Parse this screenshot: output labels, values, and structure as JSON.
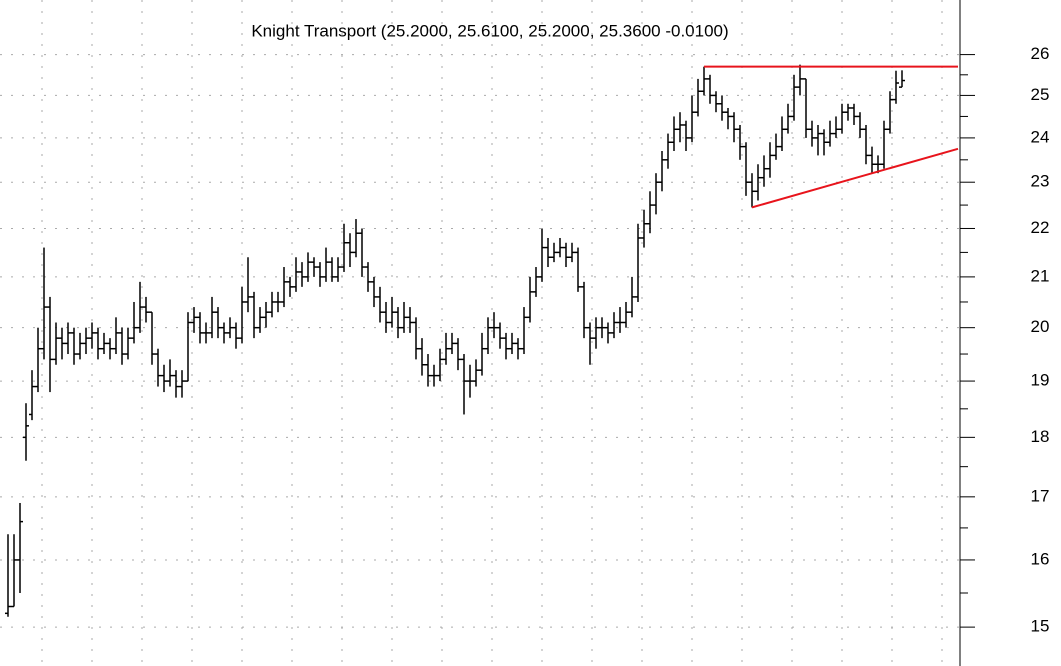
{
  "chart_data": {
    "type": "ohlc",
    "subtitle": "Knight Transport (25.2000, 25.6100, 25.2000, 25.3600 -0.0100)",
    "log_scale": true,
    "grid": true,
    "color": "#000000",
    "ylim": [
      14.45,
      27.4
    ],
    "yticks": [
      15,
      16,
      17,
      18,
      19,
      20,
      21,
      22,
      23,
      24,
      25,
      26
    ],
    "ohlc": [
      [
        15.2,
        16.4,
        15.15,
        15.3
      ],
      [
        15.3,
        16.4,
        15.3,
        16.0
      ],
      [
        16.0,
        16.9,
        15.5,
        16.6
      ],
      [
        18.0,
        18.6,
        17.6,
        18.2
      ],
      [
        18.4,
        19.2,
        18.3,
        18.9
      ],
      [
        18.9,
        20.0,
        18.8,
        19.6
      ],
      [
        19.6,
        21.6,
        19.4,
        20.4
      ],
      [
        20.4,
        20.6,
        18.8,
        19.4
      ],
      [
        19.4,
        20.1,
        19.3,
        19.8
      ],
      [
        19.8,
        20.0,
        19.4,
        19.7
      ],
      [
        19.7,
        20.1,
        19.5,
        19.9
      ],
      [
        19.9,
        20.0,
        19.3,
        19.5
      ],
      [
        19.5,
        19.9,
        19.4,
        19.7
      ],
      [
        19.7,
        20.0,
        19.5,
        19.8
      ],
      [
        19.8,
        20.1,
        19.6,
        19.9
      ],
      [
        19.9,
        20.0,
        19.4,
        19.6
      ],
      [
        19.6,
        19.9,
        19.5,
        19.7
      ],
      [
        19.7,
        19.8,
        19.4,
        19.6
      ],
      [
        19.6,
        20.2,
        19.5,
        19.9
      ],
      [
        19.9,
        20.0,
        19.3,
        19.5
      ],
      [
        19.5,
        20.0,
        19.4,
        19.8
      ],
      [
        19.8,
        20.5,
        19.7,
        20.0
      ],
      [
        20.0,
        20.9,
        19.9,
        20.4
      ],
      [
        20.4,
        20.6,
        20.1,
        20.3
      ],
      [
        20.3,
        20.3,
        19.3,
        19.5
      ],
      [
        19.5,
        19.6,
        18.9,
        19.1
      ],
      [
        19.1,
        19.3,
        18.8,
        19.0
      ],
      [
        19.0,
        19.4,
        18.9,
        19.1
      ],
      [
        19.1,
        19.2,
        18.7,
        18.9
      ],
      [
        18.9,
        19.2,
        18.7,
        19.0
      ],
      [
        19.0,
        20.3,
        19.0,
        20.1
      ],
      [
        20.1,
        20.4,
        19.9,
        20.2
      ],
      [
        20.2,
        20.3,
        19.7,
        19.9
      ],
      [
        19.9,
        20.1,
        19.7,
        19.9
      ],
      [
        19.9,
        20.6,
        19.8,
        20.3
      ],
      [
        20.3,
        20.4,
        19.8,
        20.0
      ],
      [
        20.0,
        20.1,
        19.7,
        19.9
      ],
      [
        19.9,
        20.2,
        19.8,
        20.0
      ],
      [
        20.0,
        20.1,
        19.6,
        19.8
      ],
      [
        19.8,
        20.8,
        19.7,
        20.5
      ],
      [
        20.5,
        21.4,
        20.3,
        20.6
      ],
      [
        20.6,
        20.7,
        19.8,
        20.0
      ],
      [
        20.0,
        20.4,
        19.9,
        20.2
      ],
      [
        20.2,
        20.5,
        20.0,
        20.3
      ],
      [
        20.3,
        20.7,
        20.2,
        20.5
      ],
      [
        20.5,
        20.7,
        20.3,
        20.5
      ],
      [
        20.5,
        21.2,
        20.4,
        20.9
      ],
      [
        20.9,
        21.0,
        20.6,
        20.8
      ],
      [
        20.8,
        21.4,
        20.7,
        21.1
      ],
      [
        21.1,
        21.3,
        20.8,
        21.0
      ],
      [
        21.0,
        21.5,
        20.9,
        21.3
      ],
      [
        21.3,
        21.4,
        21.0,
        21.2
      ],
      [
        21.2,
        21.3,
        20.8,
        21.0
      ],
      [
        21.0,
        21.6,
        20.9,
        21.3
      ],
      [
        21.3,
        21.4,
        20.9,
        21.0
      ],
      [
        21.0,
        21.4,
        20.9,
        21.2
      ],
      [
        21.2,
        22.1,
        21.1,
        21.7
      ],
      [
        21.7,
        21.9,
        21.2,
        21.5
      ],
      [
        21.5,
        22.2,
        21.4,
        21.9
      ],
      [
        21.9,
        22.0,
        21.0,
        21.2
      ],
      [
        21.2,
        21.3,
        20.7,
        20.9
      ],
      [
        20.9,
        21.0,
        20.4,
        20.6
      ],
      [
        20.6,
        20.8,
        20.1,
        20.3
      ],
      [
        20.3,
        20.5,
        19.9,
        20.1
      ],
      [
        20.1,
        20.6,
        20.0,
        20.3
      ],
      [
        20.3,
        20.4,
        19.8,
        20.0
      ],
      [
        20.0,
        20.5,
        19.9,
        20.2
      ],
      [
        20.2,
        20.4,
        19.9,
        20.1
      ],
      [
        20.1,
        20.2,
        19.4,
        19.6
      ],
      [
        19.6,
        19.8,
        19.1,
        19.3
      ],
      [
        19.3,
        19.5,
        18.9,
        19.1
      ],
      [
        19.1,
        19.3,
        18.9,
        19.1
      ],
      [
        19.1,
        19.6,
        19.0,
        19.4
      ],
      [
        19.4,
        19.9,
        19.3,
        19.6
      ],
      [
        19.6,
        19.9,
        19.5,
        19.7
      ],
      [
        19.7,
        19.8,
        19.2,
        19.4
      ],
      [
        19.4,
        19.5,
        18.4,
        19.0
      ],
      [
        19.0,
        19.3,
        18.7,
        19.0
      ],
      [
        19.0,
        19.4,
        18.9,
        19.2
      ],
      [
        19.2,
        19.9,
        19.1,
        19.6
      ],
      [
        19.6,
        20.2,
        19.5,
        20.0
      ],
      [
        20.0,
        20.3,
        19.8,
        20.0
      ],
      [
        20.0,
        20.1,
        19.6,
        19.8
      ],
      [
        19.8,
        19.9,
        19.4,
        19.6
      ],
      [
        19.6,
        19.9,
        19.5,
        19.7
      ],
      [
        19.7,
        19.8,
        19.4,
        19.6
      ],
      [
        19.6,
        20.4,
        19.5,
        20.2
      ],
      [
        20.2,
        21.0,
        20.1,
        20.7
      ],
      [
        20.7,
        21.2,
        20.6,
        21.0
      ],
      [
        21.0,
        22.0,
        20.9,
        21.6
      ],
      [
        21.6,
        21.8,
        21.2,
        21.4
      ],
      [
        21.4,
        21.7,
        21.3,
        21.5
      ],
      [
        21.5,
        21.8,
        21.4,
        21.6
      ],
      [
        21.6,
        21.7,
        21.2,
        21.4
      ],
      [
        21.4,
        21.7,
        21.3,
        21.5
      ],
      [
        21.5,
        21.6,
        20.7,
        20.8
      ],
      [
        20.8,
        20.9,
        19.8,
        20.0
      ],
      [
        20.0,
        20.1,
        19.3,
        19.8
      ],
      [
        19.8,
        20.2,
        19.6,
        20.0
      ],
      [
        20.0,
        20.2,
        19.8,
        20.0
      ],
      [
        20.0,
        20.1,
        19.7,
        19.9
      ],
      [
        19.9,
        20.3,
        19.8,
        20.1
      ],
      [
        20.1,
        20.4,
        19.9,
        20.1
      ],
      [
        20.1,
        20.5,
        20.0,
        20.3
      ],
      [
        20.3,
        21.0,
        20.2,
        20.6
      ],
      [
        20.6,
        22.1,
        20.5,
        21.8
      ],
      [
        21.8,
        22.4,
        21.6,
        22.1
      ],
      [
        22.1,
        22.8,
        21.9,
        22.5
      ],
      [
        22.5,
        23.2,
        22.3,
        23.0
      ],
      [
        23.0,
        23.7,
        22.8,
        23.5
      ],
      [
        23.5,
        24.1,
        23.3,
        23.9
      ],
      [
        23.9,
        24.5,
        23.7,
        24.2
      ],
      [
        24.2,
        24.6,
        23.9,
        24.3
      ],
      [
        24.3,
        24.4,
        23.7,
        24.0
      ],
      [
        24.0,
        25.0,
        23.9,
        24.6
      ],
      [
        24.6,
        25.4,
        24.5,
        25.1
      ],
      [
        25.1,
        25.7,
        25.0,
        25.4
      ],
      [
        25.4,
        25.5,
        24.8,
        25.0
      ],
      [
        25.0,
        25.1,
        24.6,
        24.8
      ],
      [
        24.8,
        25.0,
        24.4,
        24.6
      ],
      [
        24.6,
        24.7,
        24.2,
        24.5
      ],
      [
        24.5,
        24.6,
        23.9,
        24.2
      ],
      [
        24.2,
        24.3,
        23.5,
        23.8
      ],
      [
        23.8,
        23.9,
        22.7,
        23.0
      ],
      [
        23.0,
        23.2,
        22.45,
        22.8
      ],
      [
        22.8,
        23.4,
        22.6,
        23.1
      ],
      [
        23.1,
        23.6,
        22.9,
        23.3
      ],
      [
        23.3,
        23.9,
        23.1,
        23.6
      ],
      [
        23.6,
        24.1,
        23.5,
        23.8
      ],
      [
        23.8,
        24.5,
        23.7,
        24.2
      ],
      [
        24.2,
        24.8,
        24.1,
        24.5
      ],
      [
        24.5,
        25.5,
        24.4,
        25.2
      ],
      [
        25.2,
        25.75,
        25.0,
        25.4
      ],
      [
        25.4,
        25.4,
        24.0,
        24.2
      ],
      [
        24.2,
        24.4,
        23.8,
        24.0
      ],
      [
        24.0,
        24.3,
        23.6,
        24.1
      ],
      [
        24.1,
        24.2,
        23.6,
        23.9
      ],
      [
        23.9,
        24.4,
        23.8,
        24.1
      ],
      [
        24.1,
        24.5,
        24.0,
        24.2
      ],
      [
        24.2,
        24.8,
        24.1,
        24.6
      ],
      [
        24.6,
        24.8,
        24.4,
        24.7
      ],
      [
        24.7,
        24.8,
        24.3,
        24.5
      ],
      [
        24.5,
        24.6,
        24.0,
        24.2
      ],
      [
        24.2,
        24.3,
        23.4,
        23.6
      ],
      [
        23.6,
        23.8,
        23.2,
        23.4
      ],
      [
        23.4,
        23.6,
        23.2,
        23.4
      ],
      [
        23.4,
        24.4,
        23.3,
        24.2
      ],
      [
        24.2,
        25.1,
        24.1,
        24.9
      ],
      [
        24.9,
        25.6,
        24.8,
        25.3
      ],
      [
        25.2,
        25.61,
        25.2,
        25.36
      ]
    ],
    "trendlines": [
      {
        "color": "#e8141c",
        "values": [
          25.7,
          25.7
        ]
      },
      {
        "color": "#e8141c",
        "values": [
          22.45,
          23.75
        ]
      }
    ]
  }
}
